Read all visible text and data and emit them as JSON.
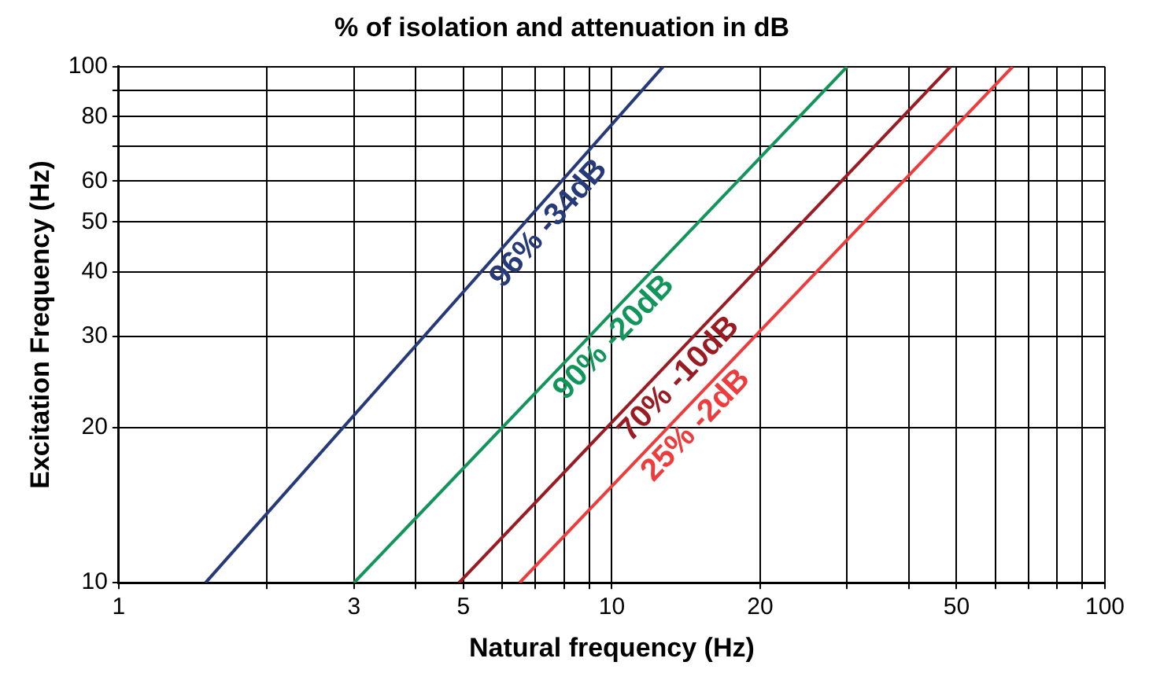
{
  "chart_data": {
    "type": "line",
    "title": "% of isolation and attenuation in dB",
    "xlabel": "Natural frequency (Hz)",
    "ylabel": "Excitation Frequency (Hz)",
    "log": "xy",
    "grid": true,
    "legend": false,
    "marker": "none",
    "line_style": "solid",
    "xlim": [
      1,
      100
    ],
    "ylim": [
      10,
      100
    ],
    "xticks": [
      1,
      {
        "value": 2,
        "label": null
      },
      3,
      {
        "value": 4,
        "label": null
      },
      5,
      {
        "value": 6,
        "label": null
      },
      {
        "value": 7,
        "label": null
      },
      {
        "value": 8,
        "label": null
      },
      {
        "value": 9,
        "label": null
      },
      10,
      20,
      {
        "value": 30,
        "label": null
      },
      {
        "value": 40,
        "label": null
      },
      50,
      {
        "value": 60,
        "label": null
      },
      {
        "value": 70,
        "label": null
      },
      {
        "value": 80,
        "label": null
      },
      {
        "value": 90,
        "label": null
      },
      100
    ],
    "yticks": [
      10,
      20,
      30,
      40,
      50,
      60,
      {
        "value": 70,
        "label": null
      },
      80,
      {
        "value": 90,
        "label": null
      },
      100
    ],
    "series": [
      {
        "color": "#263a7a",
        "x": [
          1.5,
          12.7
        ],
        "values": [
          10,
          100
        ]
      },
      {
        "color": "#11955a",
        "x": [
          3,
          30
        ],
        "values": [
          10,
          100
        ]
      },
      {
        "color": "#9b1b23",
        "x": [
          4.9,
          48.6
        ],
        "values": [
          10,
          100
        ]
      },
      {
        "color": "#ee3b3b",
        "x": [
          6.5,
          65
        ],
        "values": [
          10,
          100
        ]
      }
    ],
    "annotations": [
      "96% -34dB",
      "90% -20dB",
      "70% -10dB",
      "25% -2dB"
    ]
  }
}
